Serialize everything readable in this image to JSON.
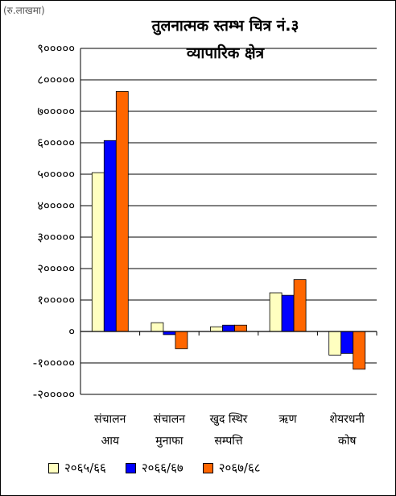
{
  "unit_label": "(रु.लाखमा)",
  "chart_data": {
    "type": "bar",
    "title": [
      "तुलनात्मक स्तम्भ चित्र नं.३",
      "व्यापारिक क्षेत्र"
    ],
    "categories": [
      [
        "संचालन",
        "आय"
      ],
      [
        "संचालन",
        "मुनाफा"
      ],
      [
        "खुद स्थिर",
        "सम्पत्ति"
      ],
      [
        "ऋण",
        ""
      ],
      [
        "शेयरधनी",
        "कोष"
      ]
    ],
    "series": [
      {
        "name": "२०६५/६६",
        "color": "#ffffc0",
        "values": [
          505000,
          28000,
          15000,
          123000,
          -75000
        ]
      },
      {
        "name": "२०६६/६७",
        "color": "#0000ff",
        "values": [
          607000,
          -10000,
          20000,
          115000,
          -70000
        ]
      },
      {
        "name": "२०६७/६८",
        "color": "#ff6600",
        "values": [
          763000,
          -55000,
          20000,
          165000,
          -120000
        ]
      }
    ],
    "ylim": [
      -200000,
      900000
    ],
    "yticks": [
      900000,
      800000,
      700000,
      600000,
      500000,
      400000,
      300000,
      200000,
      100000,
      0,
      -100000,
      -200000
    ],
    "ytick_labels": [
      "९०००००",
      "८०००००",
      "७०००००",
      "६०००००",
      "५०००००",
      "४०००००",
      "३०००००",
      "२०००००",
      "१०००००",
      "०",
      "-१०००००",
      "-२०००००"
    ],
    "grid": true,
    "legend": "bottom"
  }
}
